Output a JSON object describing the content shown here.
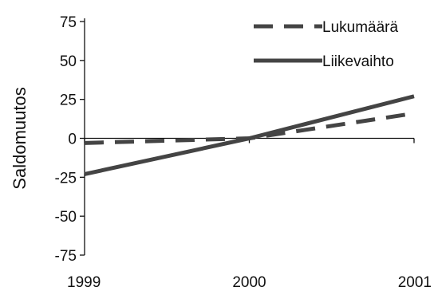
{
  "chart_data": {
    "type": "line",
    "title": "",
    "xlabel": "",
    "ylabel": "Saldomuutos",
    "x": [
      "1999",
      "2000",
      "2001"
    ],
    "ylim": [
      -75,
      75
    ],
    "yticks": [
      "75",
      "50",
      "25",
      "0",
      "-25",
      "-50",
      "-75"
    ],
    "grid": false,
    "legend_position": "top-right",
    "series": [
      {
        "name": "Lukumäärä",
        "values": [
          -3,
          0,
          16
        ],
        "color": "#444444",
        "style": "dashed"
      },
      {
        "name": "Liikevaihto",
        "values": [
          -23,
          0,
          27
        ],
        "color": "#444444",
        "style": "solid"
      }
    ]
  }
}
